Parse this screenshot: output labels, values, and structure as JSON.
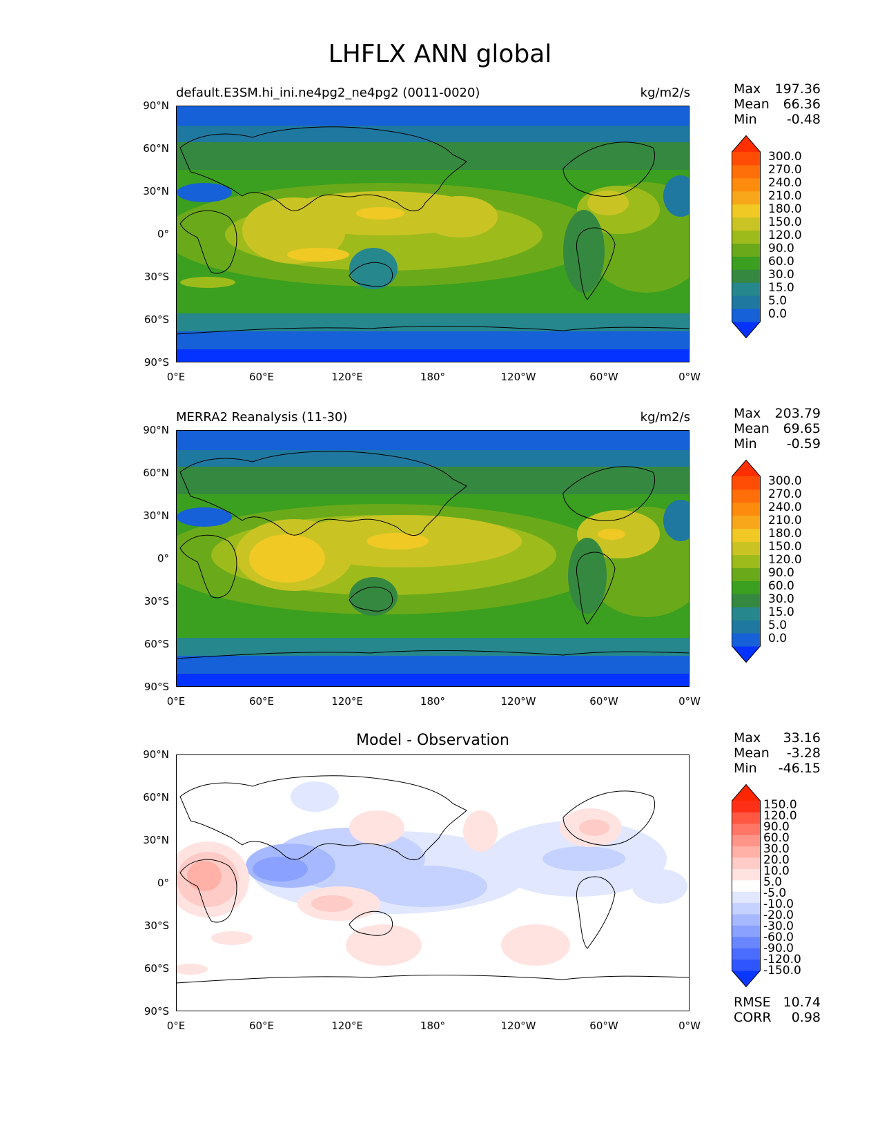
{
  "figure": {
    "title": "LHFLX ANN global"
  },
  "axes": {
    "lon_labels": [
      "0°E",
      "60°E",
      "120°E",
      "180°",
      "120°W",
      "60°W",
      "0°W"
    ],
    "lat_labels": [
      "90°N",
      "60°N",
      "30°N",
      "0°",
      "30°S",
      "60°S",
      "90°S"
    ]
  },
  "panels": [
    {
      "title": "default.E3SM.hi_ini.ne4pg2_ne4pg2 (0011-0020)",
      "units": "kg/m2/s",
      "stats": {
        "max_label": "Max",
        "max": "197.36",
        "mean_label": "Mean",
        "mean": "66.36",
        "min_label": "Min",
        "min": "-0.48"
      },
      "colorbar_labels": [
        "300.0",
        "270.0",
        "240.0",
        "210.0",
        "180.0",
        "150.0",
        "120.0",
        "90.0",
        "60.0",
        "30.0",
        "15.0",
        "5.0",
        "0.0"
      ],
      "colorbar_colors": [
        "#0433ff",
        "#1660d8",
        "#1f78a0",
        "#26878c",
        "#35883f",
        "#3b9f1f",
        "#6aaa1a",
        "#9ebb1c",
        "#c9c424",
        "#f0c924",
        "#f7a719",
        "#fd8c0e",
        "#ff6f09",
        "#ff4d05",
        "#ff2f00"
      ]
    },
    {
      "title": "MERRA2 Reanalysis (11-30)",
      "units": "kg/m2/s",
      "stats": {
        "max_label": "Max",
        "max": "203.79",
        "mean_label": "Mean",
        "mean": "69.65",
        "min_label": "Min",
        "min": "-0.59"
      },
      "colorbar_labels": [
        "300.0",
        "270.0",
        "240.0",
        "210.0",
        "180.0",
        "150.0",
        "120.0",
        "90.0",
        "60.0",
        "30.0",
        "15.0",
        "5.0",
        "0.0"
      ],
      "colorbar_colors": [
        "#0433ff",
        "#1660d8",
        "#1f78a0",
        "#26878c",
        "#35883f",
        "#3b9f1f",
        "#6aaa1a",
        "#9ebb1c",
        "#c9c424",
        "#f0c924",
        "#f7a719",
        "#fd8c0e",
        "#ff6f09",
        "#ff4d05",
        "#ff2f00"
      ]
    },
    {
      "title": "Model - Observation",
      "stats": {
        "max_label": "Max",
        "max": "33.16",
        "mean_label": "Mean",
        "mean": "-3.28",
        "min_label": "Min",
        "min": "-46.15"
      },
      "colorbar_labels": [
        "150.0",
        "120.0",
        "90.0",
        "60.0",
        "30.0",
        "20.0",
        "10.0",
        "5.0",
        "-5.0",
        "-10.0",
        "-20.0",
        "-30.0",
        "-60.0",
        "-90.0",
        "-120.0",
        "-150.0"
      ],
      "colorbar_colors": [
        "#0a37ff",
        "#2f55ff",
        "#4b6cff",
        "#6a86ff",
        "#8aa1ff",
        "#a6b8ff",
        "#c5d1ff",
        "#e0e7ff",
        "#ffffff",
        "#ffe3e1",
        "#ffcbc6",
        "#ffb1a8",
        "#ff9488",
        "#ff7666",
        "#ff5742",
        "#ff3017",
        "#ff2600"
      ],
      "metrics": {
        "rmse_label": "RMSE",
        "rmse": "10.74",
        "corr_label": "CORR",
        "corr": "0.98"
      }
    }
  ]
}
